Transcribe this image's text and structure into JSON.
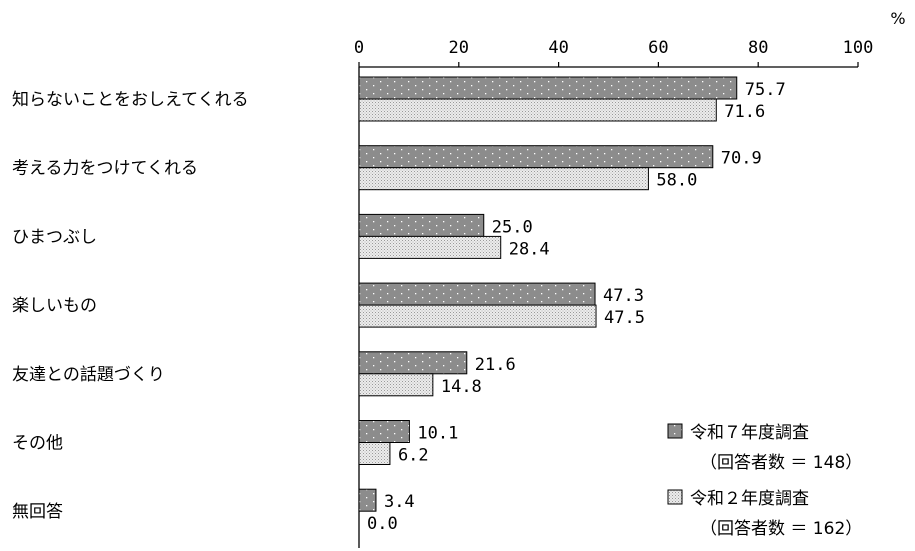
{
  "chart_data": {
    "type": "bar",
    "orientation": "horizontal",
    "unit": "%",
    "categories": [
      "知らないことをおしえてくれる",
      "考える力をつけてくれる",
      "ひまつぶし",
      "楽しいもの",
      "友達との話題づくり",
      "その他",
      "無回答"
    ],
    "series": [
      {
        "name": "令和７年度調査",
        "sample": "（回答者数 ＝ 148）",
        "color": "#8c8c8c",
        "values": [
          75.7,
          70.9,
          25.0,
          47.3,
          21.6,
          10.1,
          3.4
        ],
        "labels": [
          "75.7",
          "70.9",
          "25.0",
          "47.3",
          "21.6",
          "10.1",
          "3.4"
        ]
      },
      {
        "name": "令和２年度調査",
        "sample": "（回答者数 ＝ 162）",
        "color": "#e6e6e6",
        "values": [
          71.6,
          58.0,
          28.4,
          47.5,
          14.8,
          6.2,
          0.0
        ],
        "labels": [
          "71.6",
          "58.0",
          "28.4",
          "47.5",
          "14.8",
          "6.2",
          "0.0"
        ]
      }
    ],
    "xlim": [
      0,
      100
    ],
    "xticks": [
      "0",
      "20",
      "40",
      "60",
      "80",
      "100"
    ],
    "grid": false,
    "legend_position": "bottom-right"
  }
}
